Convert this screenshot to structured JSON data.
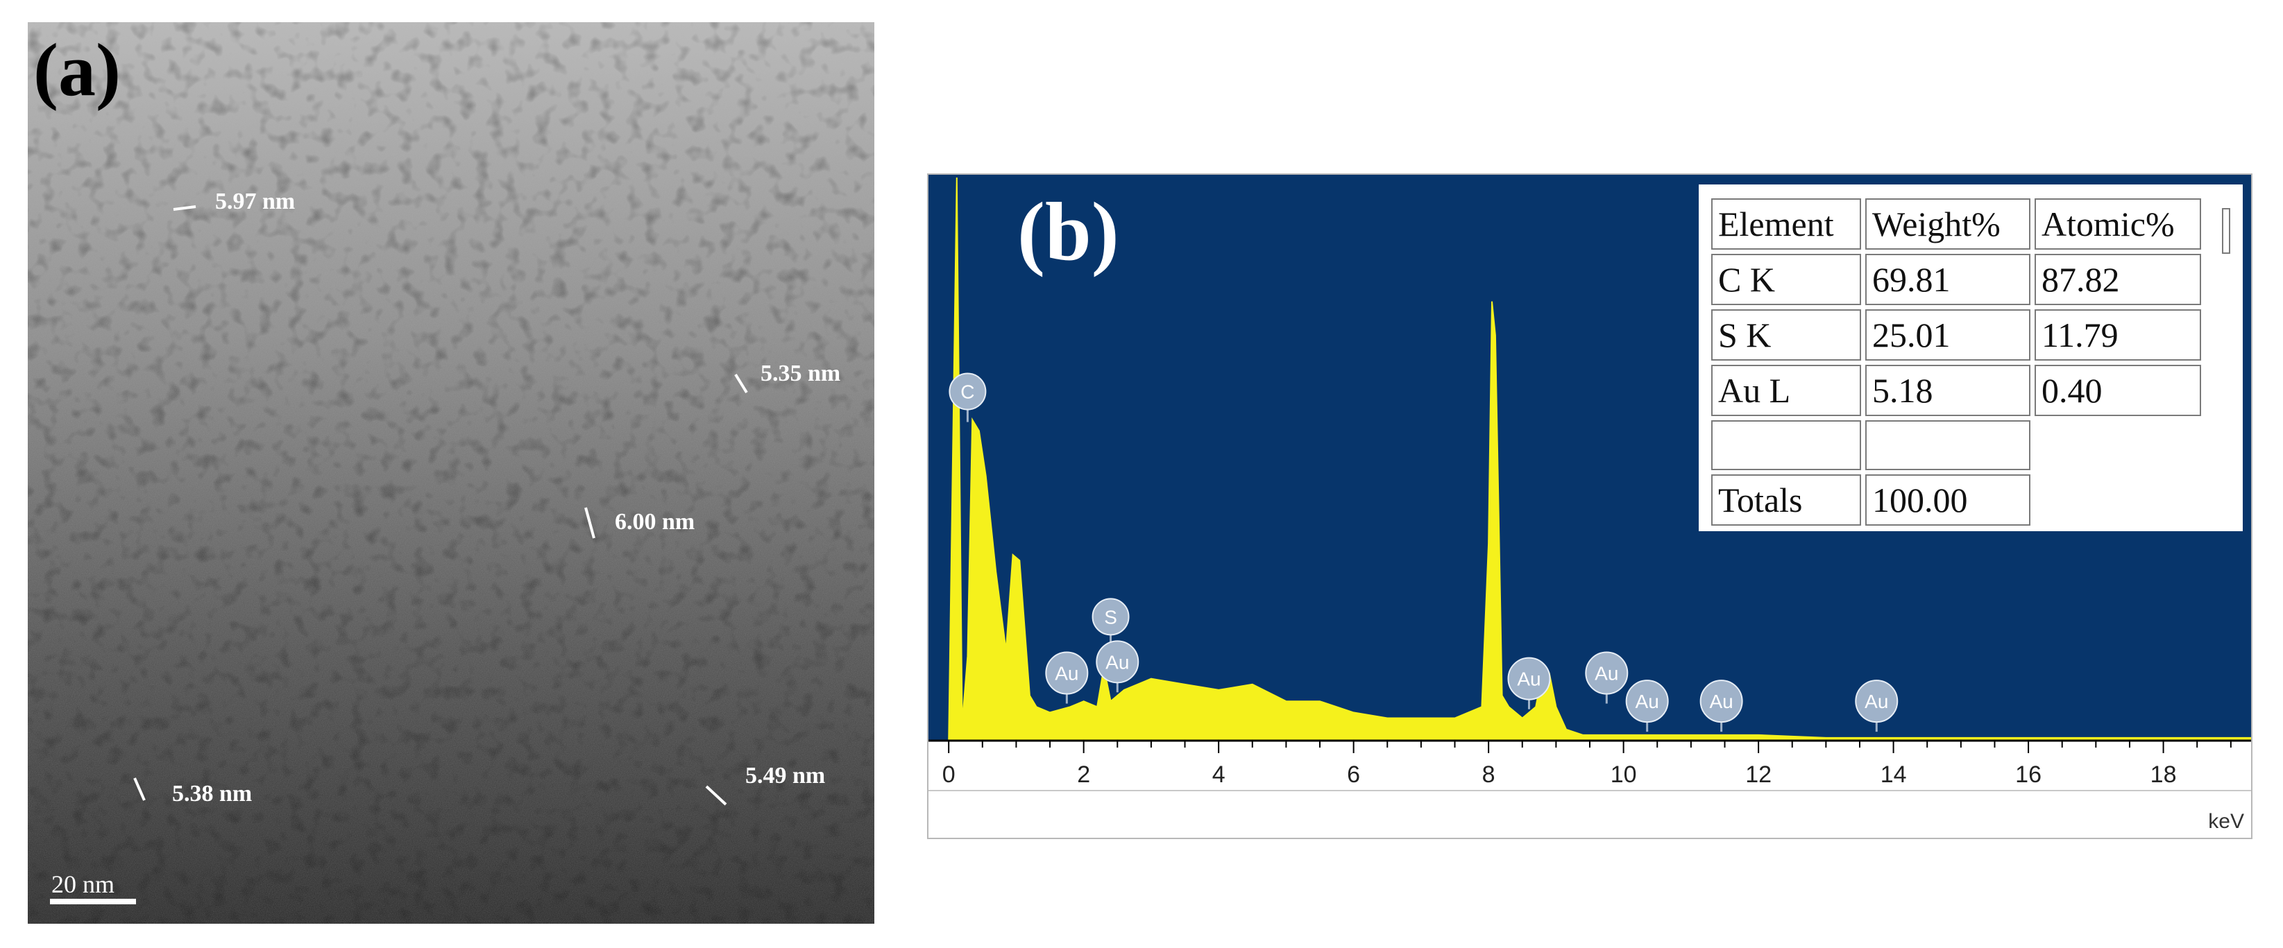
{
  "panel_a": {
    "label": "(a)",
    "scale_bar": "20 nm",
    "particles": [
      {
        "label": "5.97 nm"
      },
      {
        "label": "5.35 nm"
      },
      {
        "label": "6.00 nm"
      },
      {
        "label": "5.38 nm"
      },
      {
        "label": "5.49 nm"
      }
    ]
  },
  "panel_b": {
    "label": "(b)",
    "table": {
      "headers": [
        "Element",
        "Weight%",
        "Atomic%"
      ],
      "rows": [
        [
          "C K",
          "69.81",
          "87.82"
        ],
        [
          "S K",
          "25.01",
          "11.79"
        ],
        [
          "Au L",
          "5.18",
          "0.40"
        ]
      ],
      "totals": [
        "Totals",
        "100.00"
      ]
    }
  },
  "chart_data": {
    "type": "line",
    "xlabel": "keV",
    "ylabel": "",
    "xlim": [
      -0.3,
      19.3
    ],
    "x_ticks": [
      0,
      2,
      4,
      6,
      8,
      10,
      12,
      14,
      16,
      18
    ],
    "grid": false,
    "colors": {
      "background": "#07356b",
      "spectrum": "#f5f11c",
      "marker": "#9fb2c9"
    },
    "series": [
      {
        "x": [
          0.0,
          0.12,
          0.2,
          0.28,
          0.35,
          0.45,
          0.55,
          0.7,
          0.85,
          0.95,
          1.05,
          1.2,
          1.3,
          1.5,
          1.8,
          2.0,
          2.2,
          2.3,
          2.4,
          2.6,
          3.0,
          3.5,
          4.0,
          4.5,
          5.0,
          5.5,
          6.0,
          6.5,
          7.0,
          7.5,
          7.9,
          8.0,
          8.05,
          8.1,
          8.2,
          8.3,
          8.5,
          8.7,
          8.8,
          8.9,
          9.0,
          9.15,
          9.4,
          10.0,
          11.0,
          12.0,
          13.0,
          14.0,
          16.0,
          18.0,
          19.3
        ],
        "y": [
          0,
          100,
          3,
          15,
          57,
          55,
          47,
          30,
          16,
          33,
          32,
          8,
          6,
          5,
          6,
          7,
          6,
          13,
          7,
          9,
          11,
          10,
          9,
          10,
          7,
          7,
          5,
          4,
          4,
          4,
          6,
          35,
          78,
          72,
          8,
          6,
          4,
          6,
          12,
          12,
          6,
          2,
          1,
          1,
          1,
          1,
          0.5,
          0.5,
          0.5,
          0.5,
          0.5
        ]
      }
    ],
    "peak_markers": [
      {
        "label": "C",
        "x": 0.28,
        "y": 62
      },
      {
        "label": "S",
        "x": 2.4,
        "y": 22
      },
      {
        "label": "Au",
        "x": 2.5,
        "y": 14
      },
      {
        "label": "Au",
        "x": 1.75,
        "y": 12
      },
      {
        "label": "Au",
        "x": 8.6,
        "y": 11
      },
      {
        "label": "Au",
        "x": 9.75,
        "y": 12
      },
      {
        "label": "Au",
        "x": 10.35,
        "y": 7
      },
      {
        "label": "Au",
        "x": 11.45,
        "y": 7
      },
      {
        "label": "Au",
        "x": 13.75,
        "y": 7
      }
    ]
  }
}
